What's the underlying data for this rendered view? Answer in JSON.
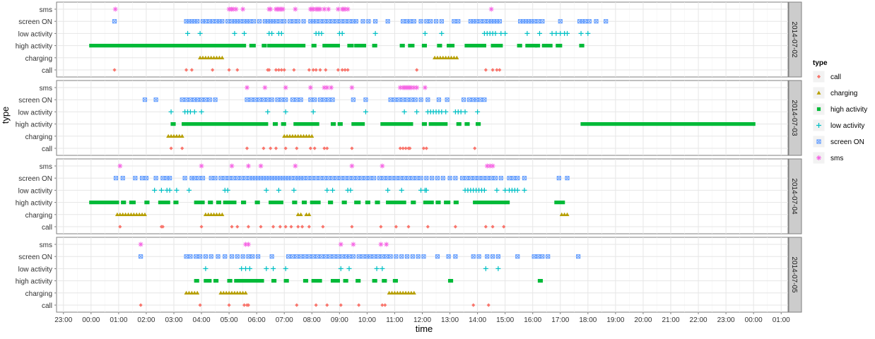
{
  "chart_data": {
    "type": "scatter",
    "xlabel": "time",
    "ylabel": "type",
    "categories": [
      "sms",
      "screen ON",
      "low activity",
      "high activity",
      "charging",
      "call"
    ],
    "x_tick_labels": [
      "23:00",
      "00:00",
      "01:00",
      "02:00",
      "03:00",
      "04:00",
      "05:00",
      "06:00",
      "07:00",
      "08:00",
      "09:00",
      "10:00",
      "11:00",
      "12:00",
      "13:00",
      "14:00",
      "15:00",
      "16:00",
      "17:00",
      "18:00",
      "19:00",
      "20:00",
      "21:00",
      "22:00",
      "23:00",
      "00:00",
      "01:00"
    ],
    "x_unit": "hours since midnight of the facet date",
    "xlim": [
      -1.25,
      25.25
    ],
    "grid": true,
    "legend": {
      "title": "type",
      "position": "right",
      "entries": [
        "call",
        "charging",
        "high activity",
        "low activity",
        "screen ON",
        "sms"
      ]
    },
    "colors": {
      "call": "#F8766D",
      "charging": "#B79F00",
      "high activity": "#00BA38",
      "low activity": "#00BFC4",
      "screen ON": "#619CFF",
      "sms": "#F564E3"
    },
    "facets": [
      {
        "label": "2014-07-02",
        "points": {
          "sms": [
            0.88,
            5.0,
            5.08,
            5.15,
            5.25,
            5.5,
            6.45,
            6.5,
            6.7,
            6.75,
            6.8,
            6.85,
            6.9,
            6.95,
            7.4,
            7.95,
            8.0,
            8.05,
            8.15,
            8.2,
            8.25,
            8.3,
            8.45,
            8.6,
            8.95,
            9.1,
            9.15,
            9.2,
            9.3,
            14.5
          ],
          "screen ON": [
            0.85,
            3.45,
            3.55,
            3.65,
            3.75,
            3.85,
            4.05,
            4.15,
            4.3,
            4.4,
            4.55,
            4.65,
            4.75,
            4.95,
            5.1,
            5.2,
            5.3,
            5.4,
            5.55,
            5.65,
            5.75,
            5.9,
            6.1,
            6.3,
            6.4,
            6.5,
            6.6,
            6.7,
            6.85,
            7.0,
            7.2,
            7.35,
            7.5,
            7.7,
            7.95,
            8.05,
            8.15,
            8.3,
            8.45,
            8.6,
            8.75,
            8.9,
            9.05,
            9.2,
            9.35,
            9.5,
            9.6,
            9.85,
            10.05,
            10.3,
            10.75,
            11.3,
            11.45,
            11.55,
            11.7,
            11.95,
            12.15,
            12.3,
            12.5,
            12.7,
            13.15,
            13.3,
            13.75,
            13.85,
            13.95,
            14.1,
            14.25,
            14.4,
            14.5,
            14.6,
            14.7,
            14.8,
            15.55,
            15.65,
            15.75,
            15.85,
            15.95,
            16.05,
            16.2,
            16.35,
            17.0,
            17.7,
            17.8,
            17.9,
            18.05,
            18.3,
            18.65
          ],
          "low activity": [
            3.5,
            3.95,
            5.2,
            5.55,
            6.45,
            6.55,
            6.8,
            6.9,
            8.15,
            8.25,
            8.35,
            9.0,
            9.1,
            10.3,
            12.1,
            12.7,
            14.25,
            14.35,
            14.45,
            14.55,
            14.65,
            14.85,
            15.0,
            15.8,
            16.25,
            16.7,
            16.85,
            17.0,
            17.15,
            17.25,
            17.75,
            18.0
          ],
          "high activity": [
            [
              0.0,
              5.55
            ],
            [
              5.8,
              5.9
            ],
            [
              6.25,
              6.3
            ],
            [
              6.45,
              7.7
            ],
            [
              8.05,
              8.1
            ],
            [
              8.45,
              8.95
            ],
            [
              9.35,
              9.45
            ],
            [
              9.6,
              9.9
            ],
            [
              10.25,
              10.3
            ],
            [
              11.25,
              11.3
            ],
            [
              11.55,
              11.65
            ],
            [
              12.05,
              12.1
            ],
            [
              12.6,
              12.65
            ],
            [
              12.95,
              13.1
            ],
            [
              13.6,
              14.25
            ],
            [
              14.55,
              14.85
            ],
            [
              15.5,
              15.55
            ],
            [
              15.8,
              16.1
            ],
            [
              16.15,
              16.2
            ],
            [
              16.4,
              16.65
            ],
            [
              16.9,
              17.0
            ],
            [
              17.75,
              17.8
            ]
          ],
          "charging": [
            3.95,
            4.05,
            4.15,
            4.25,
            4.35,
            4.45,
            4.55,
            4.65,
            4.75,
            12.45,
            12.55,
            12.65,
            12.75,
            12.85,
            12.95,
            13.05,
            13.15,
            13.25
          ],
          "call": [
            0.85,
            3.45,
            3.65,
            4.4,
            5.0,
            5.3,
            6.4,
            6.45,
            6.7,
            6.8,
            6.9,
            7.0,
            7.35,
            7.9,
            8.05,
            8.15,
            8.3,
            8.5,
            8.95,
            9.1,
            9.2,
            9.3,
            11.8,
            14.3,
            14.55,
            14.7,
            14.8
          ]
        }
      },
      {
        "label": "2014-07-03",
        "points": {
          "sms": [
            5.65,
            6.3,
            7.05,
            7.95,
            8.45,
            8.55,
            8.7,
            9.45,
            11.2,
            11.3,
            11.35,
            11.4,
            11.45,
            11.5,
            11.55,
            11.6,
            11.7,
            11.8,
            12.1
          ],
          "screen ON": [
            1.95,
            2.35,
            3.3,
            3.45,
            3.6,
            3.75,
            3.85,
            4.0,
            4.15,
            4.3,
            4.5,
            5.65,
            5.8,
            5.95,
            6.1,
            6.25,
            6.4,
            6.55,
            6.75,
            6.9,
            7.05,
            7.3,
            7.45,
            7.6,
            7.95,
            8.1,
            8.3,
            8.45,
            8.6,
            8.75,
            9.5,
            9.95,
            10.85,
            11.0,
            11.15,
            11.3,
            11.45,
            11.6,
            11.75,
            11.95,
            12.2,
            12.6,
            12.9,
            13.5,
            13.7,
            13.85,
            13.95,
            14.1,
            14.25
          ],
          "low activity": [
            2.9,
            3.4,
            3.5,
            3.6,
            3.75,
            4.0,
            6.4,
            7.05,
            8.05,
            9.95,
            11.35,
            11.8,
            12.2,
            12.3,
            12.4,
            12.5,
            12.6,
            12.7,
            12.85,
            13.2,
            13.3,
            13.4,
            13.55,
            14.0
          ],
          "high activity": [
            [
              2.95,
              3.0
            ],
            [
              3.35,
              6.35
            ],
            [
              6.65,
              6.7
            ],
            [
              6.95,
              7.0
            ],
            [
              7.4,
              8.2
            ],
            [
              8.75,
              8.8
            ],
            [
              9.0,
              9.05
            ],
            [
              9.5,
              9.85
            ],
            [
              10.55,
              11.6
            ],
            [
              12.05,
              12.1
            ],
            [
              12.3,
              12.85
            ],
            [
              13.3,
              13.35
            ],
            [
              13.6,
              13.65
            ],
            [
              14.0,
              14.05
            ],
            [
              17.8,
              24.0
            ]
          ],
          "charging": [
            2.8,
            2.9,
            3.0,
            3.1,
            3.2,
            3.3,
            7.0,
            7.1,
            7.2,
            7.3,
            7.4,
            7.5,
            7.6,
            7.7,
            7.8,
            7.9,
            8.0
          ],
          "call": [
            2.9,
            3.3,
            5.65,
            6.25,
            6.5,
            6.7,
            7.05,
            7.45,
            7.95,
            8.1,
            8.45,
            8.55,
            9.45,
            11.2,
            11.3,
            11.4,
            11.5,
            11.55,
            12.05,
            12.15,
            13.9
          ]
        }
      },
      {
        "label": "2014-07-04",
        "points": {
          "sms": [
            1.05,
            4.0,
            5.1,
            5.7,
            6.15,
            7.4,
            9.45,
            10.55,
            14.35,
            14.45,
            14.55
          ],
          "screen ON": [
            0.9,
            1.15,
            1.6,
            1.85,
            2.0,
            2.35,
            2.6,
            2.75,
            2.85,
            3.4,
            3.65,
            3.75,
            3.9,
            4.05,
            4.35,
            4.5,
            4.7,
            4.85,
            5.0,
            5.15,
            5.3,
            5.45,
            5.6,
            5.75,
            5.85,
            5.95,
            6.05,
            6.15,
            6.25,
            6.35,
            6.45,
            6.55,
            6.65,
            6.75,
            6.85,
            6.95,
            7.05,
            7.15,
            7.25,
            7.4,
            7.5,
            7.6,
            7.7,
            7.85,
            8.0,
            8.15,
            8.3,
            8.45,
            8.6,
            8.75,
            8.9,
            9.05,
            9.2,
            9.35,
            9.5,
            9.65,
            9.8,
            9.95,
            10.1,
            10.25,
            10.45,
            10.6,
            10.75,
            10.9,
            11.05,
            11.2,
            11.35,
            11.5,
            11.65,
            11.8,
            11.95,
            12.15,
            12.35,
            12.55,
            12.75,
            13.0,
            13.2,
            13.45,
            13.6,
            13.75,
            13.9,
            14.05,
            14.2,
            14.35,
            14.5,
            14.65,
            14.85,
            15.15,
            15.3,
            15.45,
            15.7,
            16.95,
            17.25
          ],
          "low activity": [
            2.3,
            2.55,
            2.75,
            2.85,
            3.1,
            3.55,
            4.85,
            4.95,
            6.35,
            6.8,
            7.35,
            8.55,
            8.75,
            9.3,
            9.4,
            10.75,
            11.25,
            11.95,
            12.1,
            12.15,
            13.55,
            13.65,
            13.75,
            13.85,
            13.95,
            14.05,
            14.15,
            14.25,
            14.7,
            15.0,
            15.15,
            15.25,
            15.35,
            15.45,
            15.7
          ],
          "high activity": [
            [
              0.0,
              0.95
            ],
            [
              1.15,
              1.2
            ],
            [
              1.45,
              1.55
            ],
            [
              2.0,
              2.05
            ],
            [
              2.5,
              2.8
            ],
            [
              3.05,
              3.1
            ],
            [
              3.8,
              4.05
            ],
            [
              4.3,
              4.35
            ],
            [
              4.6,
              4.65
            ],
            [
              4.85,
              5.2
            ],
            [
              5.5,
              5.55
            ],
            [
              6.0,
              6.05
            ],
            [
              6.5,
              6.9
            ],
            [
              7.35,
              7.4
            ],
            [
              7.7,
              7.75
            ],
            [
              8.0,
              8.25
            ],
            [
              8.65,
              8.7
            ],
            [
              9.15,
              9.2
            ],
            [
              9.6,
              9.7
            ],
            [
              10.0,
              10.05
            ],
            [
              10.35,
              10.4
            ],
            [
              10.75,
              11.35
            ],
            [
              11.65,
              11.7
            ],
            [
              12.1,
              12.35
            ],
            [
              12.55,
              12.6
            ],
            [
              12.85,
              12.95
            ],
            [
              13.2,
              13.25
            ],
            [
              13.9,
              14.95
            ],
            [
              15.05,
              15.1
            ],
            [
              16.85,
              17.1
            ]
          ],
          "charging": [
            0.95,
            1.05,
            1.15,
            1.25,
            1.35,
            1.45,
            1.55,
            1.65,
            1.75,
            1.85,
            1.95,
            4.15,
            4.25,
            4.35,
            4.45,
            4.55,
            4.65,
            4.75,
            7.5,
            7.6,
            7.8,
            7.9,
            17.05,
            17.15,
            17.25
          ],
          "call": [
            1.05,
            2.55,
            2.6,
            4.0,
            5.1,
            5.3,
            5.7,
            6.15,
            6.6,
            6.85,
            7.05,
            7.25,
            7.5,
            7.65,
            7.9,
            8.4,
            9.45,
            10.5,
            11.05,
            11.5,
            12.2,
            13.2,
            14.3,
            14.55,
            14.95
          ]
        }
      },
      {
        "label": "2014-07-05",
        "points": {
          "sms": [
            1.8,
            5.6,
            5.7,
            9.05,
            9.5,
            10.5,
            10.7
          ],
          "screen ON": [
            1.8,
            3.45,
            3.6,
            3.8,
            3.95,
            4.15,
            4.35,
            4.6,
            4.85,
            5.1,
            5.3,
            5.5,
            5.7,
            5.85,
            6.05,
            6.55,
            7.15,
            7.3,
            7.45,
            7.6,
            7.75,
            7.9,
            8.05,
            8.2,
            8.35,
            8.5,
            8.65,
            8.8,
            8.95,
            9.1,
            9.25,
            9.35,
            9.5,
            9.7,
            9.85,
            10.0,
            10.1,
            10.25,
            10.4,
            10.55,
            10.7,
            10.85,
            11.05,
            11.25,
            11.45,
            11.65,
            11.85,
            12.05,
            12.55,
            12.95,
            13.2,
            13.85,
            14.05,
            14.35,
            14.55,
            14.75,
            15.45,
            16.05,
            16.2,
            16.35,
            16.55,
            17.65
          ],
          "low activity": [
            4.15,
            5.45,
            5.6,
            5.75,
            6.35,
            6.6,
            7.05,
            9.05,
            9.35,
            10.35,
            10.55,
            14.3,
            14.75
          ],
          "high activity": [
            [
              3.8,
              3.85
            ],
            [
              4.15,
              4.3
            ],
            [
              4.5,
              4.55
            ],
            [
              5.0,
              5.05
            ],
            [
              5.25,
              6.2
            ],
            [
              6.6,
              6.65
            ],
            [
              7.05,
              7.1
            ],
            [
              7.75,
              7.8
            ],
            [
              8.05,
              8.3
            ],
            [
              8.75,
              8.95
            ],
            [
              9.2,
              9.25
            ],
            [
              9.65,
              9.7
            ],
            [
              10.25,
              10.3
            ],
            [
              10.6,
              10.65
            ],
            [
              11.0,
              11.05
            ],
            [
              13.0,
              13.05
            ],
            [
              16.25,
              16.3
            ]
          ],
          "charging": [
            3.45,
            3.55,
            3.65,
            3.75,
            3.85,
            4.7,
            4.8,
            4.9,
            5.0,
            5.1,
            5.2,
            5.3,
            5.4,
            5.5,
            5.6,
            10.8,
            10.9,
            11.0,
            11.1,
            11.2,
            11.3,
            11.4,
            11.5,
            11.6,
            11.7
          ],
          "call": [
            1.8,
            3.95,
            5.0,
            5.55,
            5.65,
            5.7,
            7.45,
            8.15,
            8.55,
            9.05,
            9.7,
            10.55,
            10.65,
            13.85,
            14.4
          ]
        }
      }
    ]
  }
}
